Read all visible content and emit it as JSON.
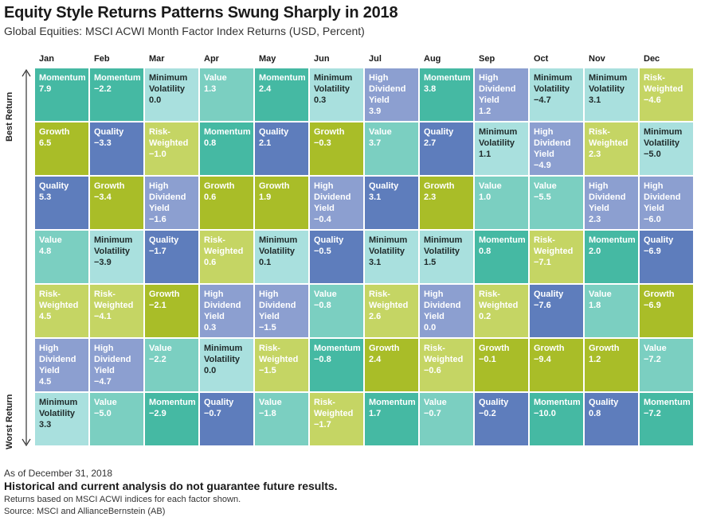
{
  "title": "Equity Style Returns Patterns Swung Sharply in 2018",
  "subtitle": "Global Equities: MSCI ACWI Month Factor Index Returns (USD, Percent)",
  "axis": {
    "best": "Best Return",
    "worst": "Worst Return"
  },
  "colors": {
    "Momentum": "#45b9a3",
    "Quality": "#5e7dbc",
    "Growth": "#a9bd28",
    "Value": "#7bcfc1",
    "Minimum Volatility": "#a9e0de",
    "Risk-Weighted": "#c5d564",
    "High Dividend Yield": "#8c9fd0"
  },
  "chart_data": {
    "type": "table",
    "title": "Equity Style Returns Patterns Swung Sharply in 2018",
    "subtitle": "Global Equities: MSCI ACWI Month Factor Index Returns (USD, Percent)",
    "months": [
      "Jan",
      "Feb",
      "Mar",
      "Apr",
      "May",
      "Jun",
      "Jul",
      "Aug",
      "Sep",
      "Oct",
      "Nov",
      "Dec"
    ],
    "columns": [
      [
        [
          "Momentum",
          "7.9"
        ],
        [
          "Growth",
          "6.5"
        ],
        [
          "Quality",
          "5.3"
        ],
        [
          "Value",
          "4.8"
        ],
        [
          "Risk-Weighted",
          "4.5"
        ],
        [
          "High Dividend Yield",
          "4.5"
        ],
        [
          "Minimum Volatility",
          "3.3"
        ]
      ],
      [
        [
          "Momentum",
          "−2.2"
        ],
        [
          "Quality",
          "−3.3"
        ],
        [
          "Growth",
          "−3.4"
        ],
        [
          "Minimum Volatility",
          "−3.9"
        ],
        [
          "Risk-Weighted",
          "−4.1"
        ],
        [
          "High Dividend Yield",
          "−4.7"
        ],
        [
          "Value",
          "−5.0"
        ]
      ],
      [
        [
          "Minimum Volatility",
          "0.0"
        ],
        [
          "Risk-Weighted",
          "−1.0"
        ],
        [
          "High Dividend Yield",
          "−1.6"
        ],
        [
          "Quality",
          "−1.7"
        ],
        [
          "Growth",
          "−2.1"
        ],
        [
          "Value",
          "−2.2"
        ],
        [
          "Momentum",
          "−2.9"
        ]
      ],
      [
        [
          "Value",
          "1.3"
        ],
        [
          "Momentum",
          "0.8"
        ],
        [
          "Growth",
          "0.6"
        ],
        [
          "Risk-Weighted",
          "0.6"
        ],
        [
          "High Dividend Yield",
          "0.3"
        ],
        [
          "Minimum Volatility",
          "0.0"
        ],
        [
          "Quality",
          "−0.7"
        ]
      ],
      [
        [
          "Momentum",
          "2.4"
        ],
        [
          "Quality",
          "2.1"
        ],
        [
          "Growth",
          "1.9"
        ],
        [
          "Minimum Volatility",
          "0.1"
        ],
        [
          "High Dividend Yield",
          "−1.5"
        ],
        [
          "Risk-Weighted",
          "−1.5"
        ],
        [
          "Value",
          "−1.8"
        ]
      ],
      [
        [
          "Minimum Volatility",
          "0.3"
        ],
        [
          "Growth",
          "−0.3"
        ],
        [
          "High Dividend Yield",
          "−0.4"
        ],
        [
          "Quality",
          "−0.5"
        ],
        [
          "Value",
          "−0.8"
        ],
        [
          "Momentum",
          "−0.8"
        ],
        [
          "Risk-Weighted",
          "−1.7"
        ]
      ],
      [
        [
          "High Dividend Yield",
          "3.9"
        ],
        [
          "Value",
          "3.7"
        ],
        [
          "Quality",
          "3.1"
        ],
        [
          "Minimum Volatility",
          "3.1"
        ],
        [
          "Risk-Weighted",
          "2.6"
        ],
        [
          "Growth",
          "2.4"
        ],
        [
          "Momentum",
          "1.7"
        ]
      ],
      [
        [
          "Momentum",
          "3.8"
        ],
        [
          "Quality",
          "2.7"
        ],
        [
          "Growth",
          "2.3"
        ],
        [
          "Minimum Volatility",
          "1.5"
        ],
        [
          "High Dividend Yield",
          "0.0"
        ],
        [
          "Risk-Weighted",
          "−0.6"
        ],
        [
          "Value",
          "−0.7"
        ]
      ],
      [
        [
          "High Dividend Yield",
          "1.2"
        ],
        [
          "Minimum Volatility",
          "1.1"
        ],
        [
          "Value",
          "1.0"
        ],
        [
          "Momentum",
          "0.8"
        ],
        [
          "Risk-Weighted",
          "0.2"
        ],
        [
          "Growth",
          "−0.1"
        ],
        [
          "Quality",
          "−0.2"
        ]
      ],
      [
        [
          "Minimum Volatility",
          "−4.7"
        ],
        [
          "High Dividend Yield",
          "−4.9"
        ],
        [
          "Value",
          "−5.5"
        ],
        [
          "Risk-Weighted",
          "−7.1"
        ],
        [
          "Quality",
          "−7.6"
        ],
        [
          "Growth",
          "−9.4"
        ],
        [
          "Momentum",
          "−10.0"
        ]
      ],
      [
        [
          "Minimum Volatility",
          "3.1"
        ],
        [
          "Risk-Weighted",
          "2.3"
        ],
        [
          "High Dividend Yield",
          "2.3"
        ],
        [
          "Momentum",
          "2.0"
        ],
        [
          "Value",
          "1.8"
        ],
        [
          "Growth",
          "1.2"
        ],
        [
          "Quality",
          "0.8"
        ]
      ],
      [
        [
          "Risk-Weighted",
          "−4.6"
        ],
        [
          "Minimum Volatility",
          "−5.0"
        ],
        [
          "High Dividend Yield",
          "−6.0"
        ],
        [
          "Quality",
          "−6.9"
        ],
        [
          "Growth",
          "−6.9"
        ],
        [
          "Value",
          "−7.2"
        ],
        [
          "Momentum",
          "−7.2"
        ]
      ]
    ]
  },
  "footer": {
    "as_of": "As of December 31, 2018",
    "disclaimer": "Historical and current analysis do not guarantee future results.",
    "note": "Returns based on MSCI ACWI indices for each factor shown.",
    "source": "Source: MSCI and AllianceBernstein (AB)"
  }
}
